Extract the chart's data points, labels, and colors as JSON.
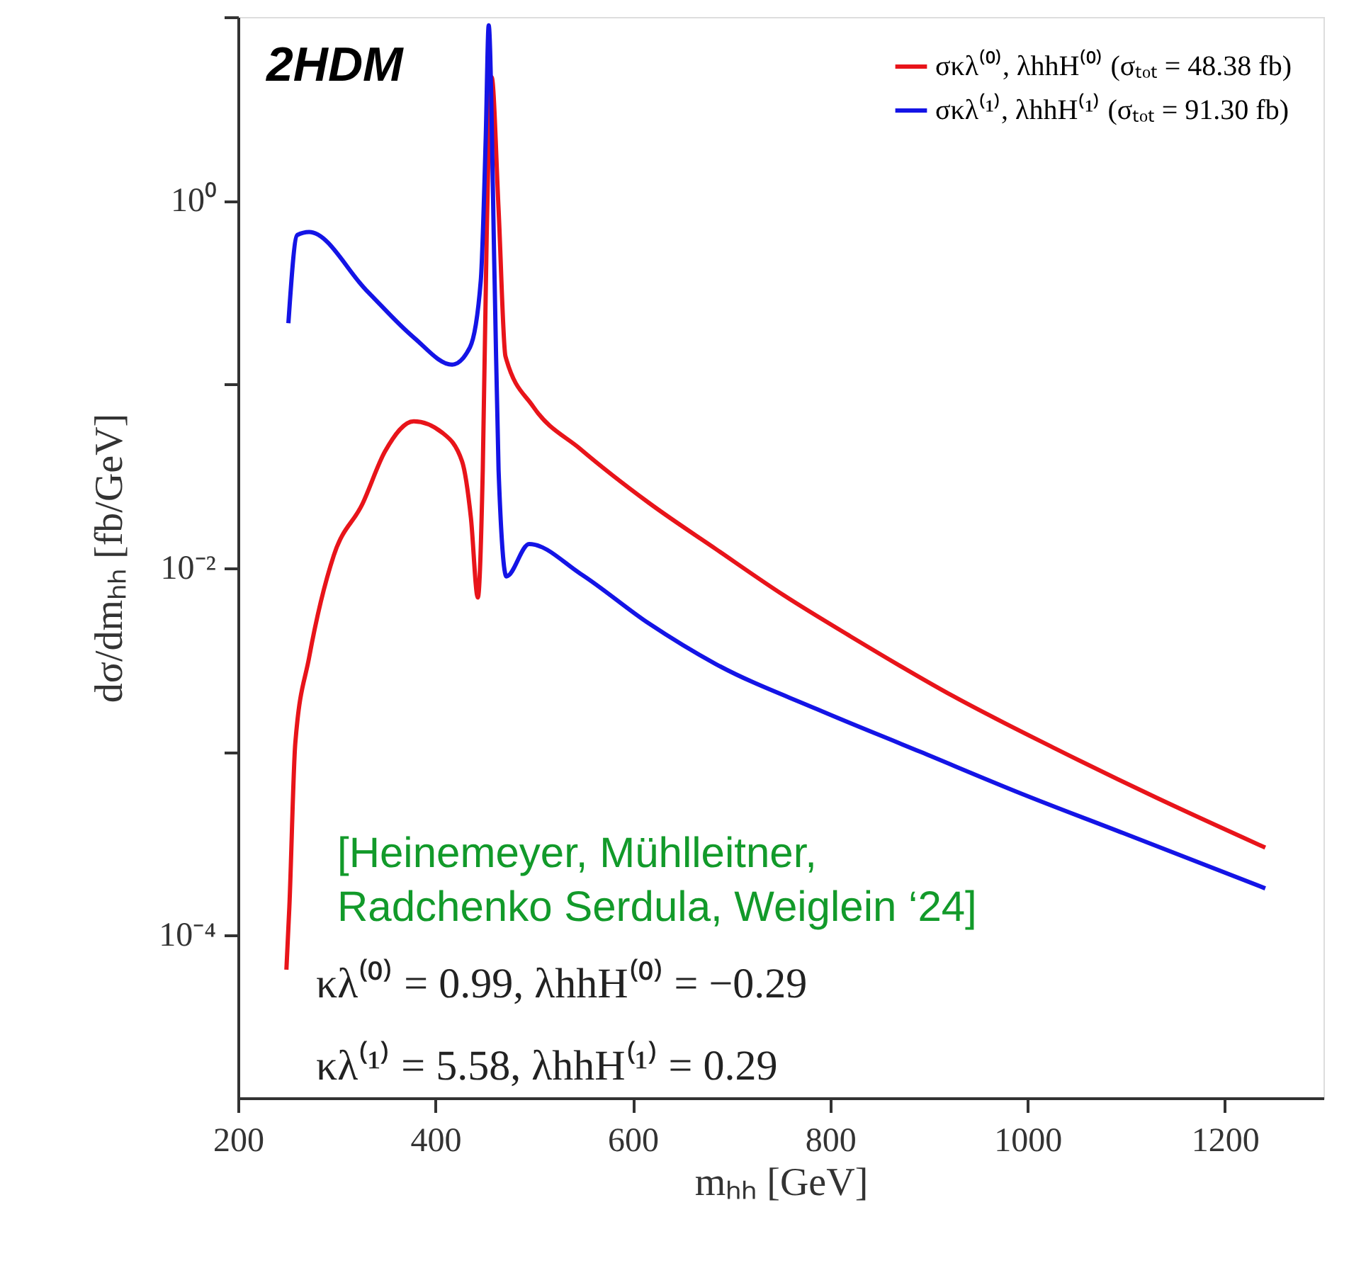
{
  "chart_data": {
    "type": "line",
    "xlabel": "mₕₕ [GeV]",
    "ylabel": "dσ/dmₕₕ [fb/GeV]",
    "log": "y",
    "grid": false,
    "legend": "top right",
    "line_style": "solid",
    "marker": "none",
    "xlim": [
      200,
      1300
    ],
    "xticks": [
      200,
      400,
      600,
      800,
      1000,
      1200
    ],
    "ylim": [
      1.3e-05,
      10
    ],
    "yticks": [
      {
        "value": 10,
        "label": null
      },
      {
        "value": 1,
        "label": "10⁰"
      },
      {
        "value": 0.1,
        "label": null
      },
      {
        "value": 0.01,
        "label": "10⁻²"
      },
      {
        "value": 0.001,
        "label": null
      },
      {
        "value": 0.0001,
        "label": "10⁻⁴"
      }
    ],
    "series": [
      {
        "name": "σκλ⁽⁰⁾, λhhH⁽⁰⁾ (σₜₒₜ = 48.38 fb)",
        "color": "#e8141a",
        "x": [
          249,
          252,
          258,
          272,
          297,
          326,
          349,
          378,
          407,
          427,
          436,
          443,
          448,
          452,
          457,
          464,
          471,
          499,
          547,
          616,
          684,
          753,
          822,
          925,
          1028,
          1131,
          1241
        ],
        "values": [
          6.5e-05,
          0.000143,
          0.00111,
          0.00325,
          0.0117,
          0.0223,
          0.0432,
          0.0629,
          0.0545,
          0.0381,
          0.0187,
          0.0069,
          0.0343,
          0.66,
          4.7,
          0.9,
          0.142,
          0.0757,
          0.0444,
          0.0227,
          0.0127,
          0.0071,
          0.0042,
          0.002,
          0.00104,
          0.00056,
          0.0003
        ]
      },
      {
        "name": "σκλ⁽¹⁾, λhhH⁽¹⁾ (σₜₒₜ = 91.30 fb)",
        "color": "#1414e6",
        "x": [
          251,
          260,
          272,
          330,
          378,
          417,
          435,
          446,
          451,
          454,
          460,
          464,
          472,
          495,
          547,
          616,
          684,
          787,
          891,
          994,
          1097,
          1241
        ],
        "values": [
          0.215,
          0.65,
          0.675,
          0.325,
          0.18,
          0.128,
          0.159,
          0.368,
          2.2,
          9,
          0.368,
          0.0343,
          0.009,
          0.0135,
          0.0093,
          0.005,
          0.003,
          0.0017,
          0.001,
          0.00059,
          0.00036,
          0.00018
        ]
      }
    ],
    "annotations": [
      "2HDM",
      "[Heinemeyer, Mühlleitner,\nRadchenko Serdula, Weiglein ‘24]",
      "κλ⁽⁰⁾ = 0.99, λhhH⁽⁰⁾ = −0.29",
      "κλ⁽¹⁾ = 5.58, λhhH⁽¹⁾ = 0.29"
    ]
  }
}
